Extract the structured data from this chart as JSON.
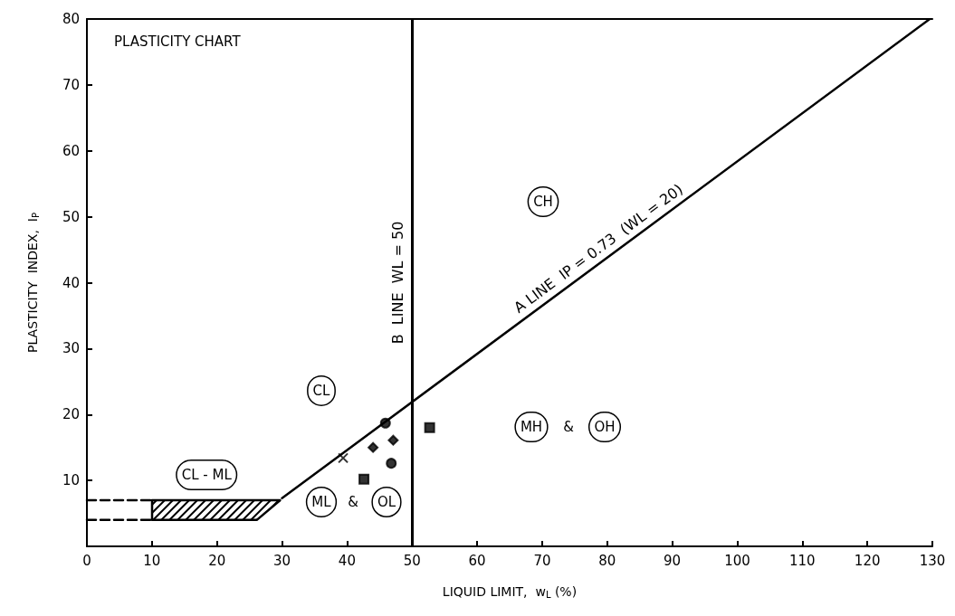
{
  "chart_data": {
    "type": "scatter",
    "title": "PLASTICITY CHART",
    "xlabel": "LIQUID LIMIT,  w$_{L}$ (%)",
    "ylabel": "PLASTICITY  INDEX,  I$_{P}$",
    "xlim": [
      0,
      130
    ],
    "xticks": [
      0,
      10,
      20,
      30,
      40,
      50,
      60,
      70,
      80,
      90,
      100,
      110,
      120,
      130
    ],
    "ylim": [
      0,
      80
    ],
    "yticks": [
      10,
      20,
      30,
      40,
      50,
      60,
      70,
      80
    ],
    "grid": false,
    "legend": false,
    "series": [
      {
        "type": "line",
        "name": "A LINE  IP = 0.73  (WL = 20)",
        "color": "#000000",
        "x": [
          30,
          129.6
        ],
        "values": [
          7.3,
          80
        ],
        "line_style": "solid",
        "marker": "none"
      },
      {
        "type": "line",
        "color": "#000000",
        "x": [
          0,
          10
        ],
        "values": [
          7,
          7
        ],
        "line_style": "dashed",
        "marker": "none"
      },
      {
        "type": "line",
        "color": "#000000",
        "x": [
          0,
          10
        ],
        "values": [
          4,
          4
        ],
        "line_style": "dashed",
        "marker": "none"
      },
      {
        "type": "line",
        "color": "#000000",
        "x": [
          10,
          29.7
        ],
        "values": [
          7,
          7
        ],
        "line_style": "solid",
        "marker": "none"
      },
      {
        "type": "line",
        "color": "#000000",
        "x": [
          10,
          26.1
        ],
        "values": [
          4,
          4
        ],
        "line_style": "solid",
        "marker": "none"
      },
      {
        "color": "#000000",
        "marker": "circle",
        "x": [
          45.9
        ],
        "values": [
          18.7
        ]
      },
      {
        "color": "#000000",
        "marker": "diamond",
        "x": [
          47.1
        ],
        "values": [
          16.1
        ]
      },
      {
        "color": "#000000",
        "marker": "diamond",
        "x": [
          44.0
        ],
        "values": [
          15.0
        ]
      },
      {
        "color": "#000000",
        "marker": "circle",
        "x": [
          46.8
        ],
        "values": [
          12.6
        ]
      },
      {
        "color": "#000000",
        "marker": "cross",
        "x": [
          39.4
        ],
        "values": [
          13.4
        ]
      },
      {
        "color": "#000000",
        "marker": "square",
        "x": [
          42.6
        ],
        "values": [
          10.2
        ]
      },
      {
        "color": "#000000",
        "marker": "square",
        "x": [
          52.7
        ],
        "values": [
          18.0
        ]
      }
    ],
    "ref_lines": [
      {
        "axis": "x",
        "value": 50,
        "label": "B  LINE  WL = 50",
        "color": "#000000",
        "line_style": "solid"
      }
    ],
    "annotations": [
      "CL",
      {
        "text": "CL - ML",
        "x": 18.4,
        "y": 7
      },
      "ML",
      "&",
      "OL",
      "MH",
      "&",
      "OH",
      "CH"
    ]
  }
}
